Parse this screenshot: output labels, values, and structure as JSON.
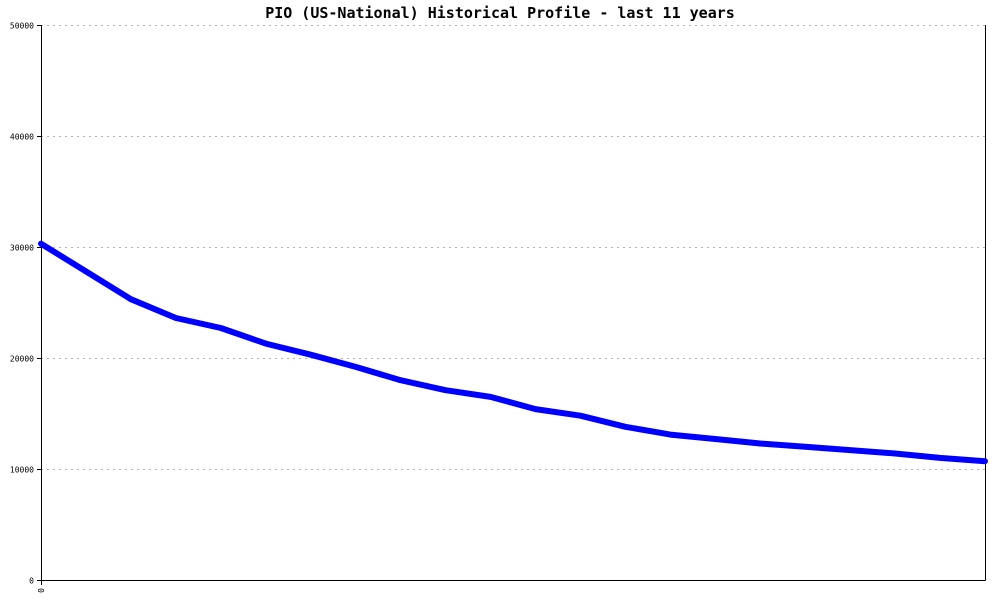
{
  "chart_data": {
    "type": "line",
    "title": "PIO (US-National) Historical Profile - last 11 years",
    "xlabel": "",
    "ylabel": "",
    "x_tick_labels": [
      "0"
    ],
    "y_ticks": [
      0,
      10000,
      20000,
      30000,
      40000,
      50000
    ],
    "y_tick_labels": [
      "0",
      "10000",
      "20000",
      "30000",
      "40000",
      "50000"
    ],
    "ylim": [
      0,
      50000
    ],
    "grid": true,
    "legend": "none",
    "series": [
      {
        "color": "#0000ff",
        "values": [
          30300,
          27800,
          25300,
          23600,
          22700,
          21300,
          20300,
          19200,
          18000,
          17100,
          16500,
          15400,
          14800,
          13800,
          13100,
          12700,
          12300,
          12000,
          11700,
          11400,
          11000,
          10700
        ]
      }
    ]
  }
}
